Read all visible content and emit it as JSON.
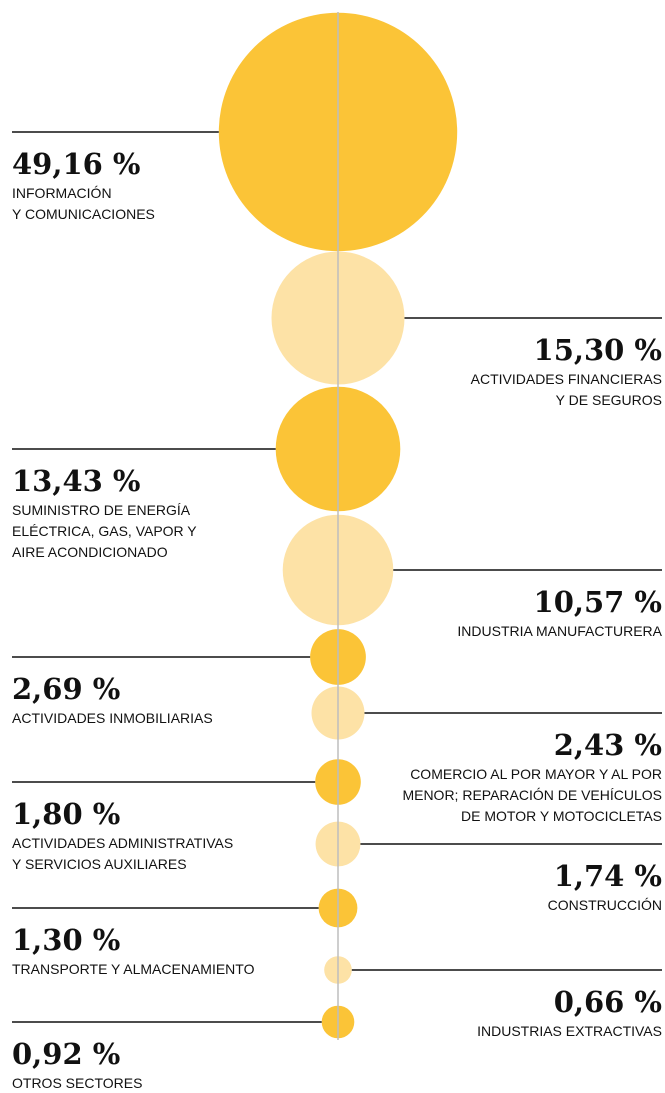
{
  "chart_data": {
    "type": "bubble",
    "categories": [
      [
        "INFORMACIÓN",
        "Y COMUNICACIONES"
      ],
      [
        "ACTIVIDADES FINANCIERAS",
        "Y DE SEGUROS"
      ],
      [
        "SUMINISTRO DE ENERGÍA",
        "ELÉCTRICA, GAS, VAPOR Y",
        "AIRE ACONDICIONADO"
      ],
      [
        "INDUSTRIA MANUFACTURERA"
      ],
      [
        "ACTIVIDADES INMOBILIARIAS"
      ],
      [
        "COMERCIO AL POR MAYOR Y AL POR",
        "MENOR; REPARACIÓN DE VEHÍCULOS",
        "DE MOTOR Y MOTOCICLETAS"
      ],
      [
        "ACTIVIDADES ADMINISTRATIVAS",
        "Y SERVICIOS AUXILIARES"
      ],
      [
        "CONSTRUCCIÓN"
      ],
      [
        "TRANSPORTE Y ALMACENAMIENTO"
      ],
      [
        "INDUSTRIAS EXTRACTIVAS"
      ],
      [
        "OTROS SECTORES"
      ]
    ],
    "values": [
      49.16,
      15.3,
      13.43,
      10.57,
      2.69,
      2.43,
      1.8,
      1.74,
      1.3,
      0.66,
      0.92
    ],
    "value_labels": [
      "49,16 %",
      "15,30 %",
      "13,43 %",
      "10,57 %",
      "2,69 %",
      "2,43 %",
      "1,80 %",
      "1,74 %",
      "1,30 %",
      "0,66 %",
      "0,92 %"
    ],
    "colors": [
      "#fbc437",
      "#fde2a6"
    ]
  }
}
